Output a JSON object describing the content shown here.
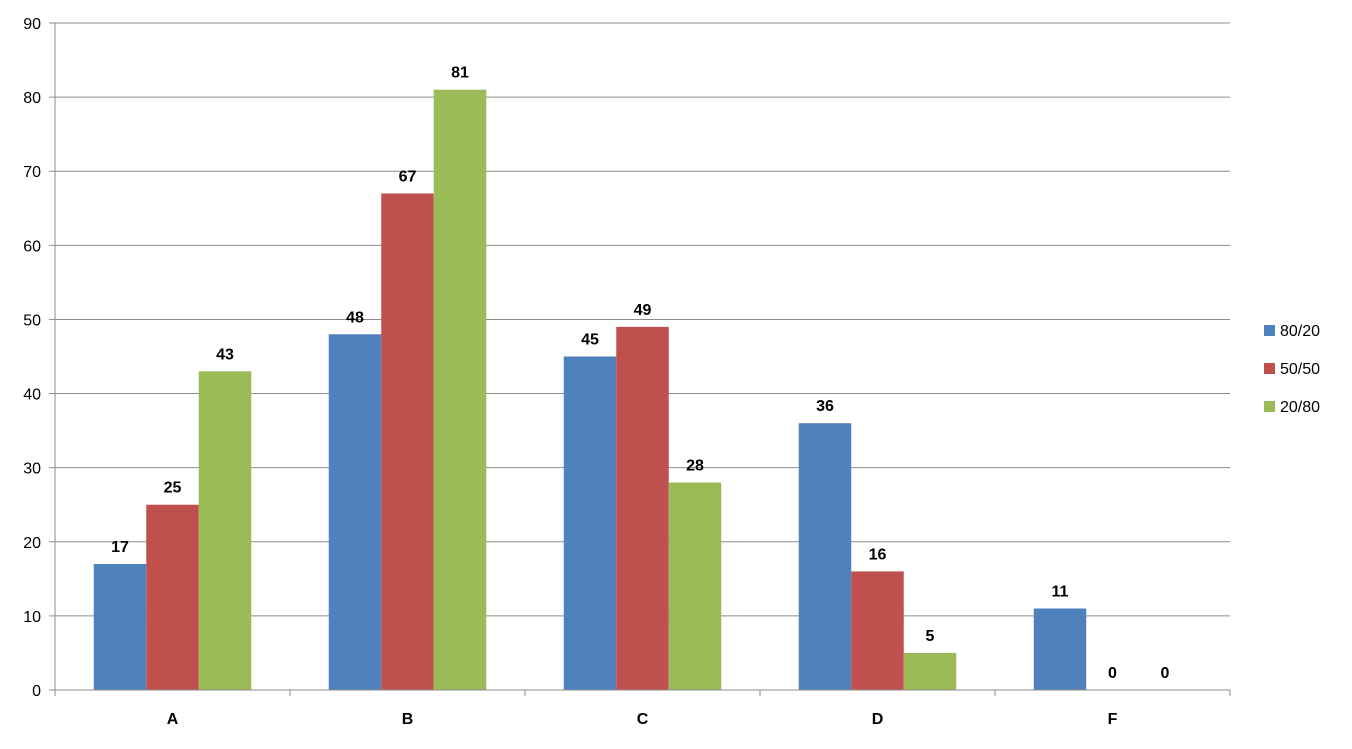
{
  "chart_data": {
    "type": "bar",
    "categories": [
      "A",
      "B",
      "C",
      "D",
      "F"
    ],
    "series": [
      {
        "name": "80/20",
        "values": [
          17,
          48,
          45,
          36,
          11
        ],
        "color": "#4F81BD"
      },
      {
        "name": "50/50",
        "values": [
          25,
          67,
          49,
          16,
          0
        ],
        "color": "#C0504D"
      },
      {
        "name": "20/80",
        "values": [
          43,
          81,
          28,
          5,
          0
        ],
        "color": "#9BBB59"
      }
    ],
    "title": "",
    "xlabel": "",
    "ylabel": "",
    "ylim": [
      0,
      90
    ],
    "yticks": [
      0,
      10,
      20,
      30,
      40,
      50,
      60,
      70,
      80,
      90
    ],
    "grid": true,
    "data_labels": true,
    "legend_position": "right"
  }
}
